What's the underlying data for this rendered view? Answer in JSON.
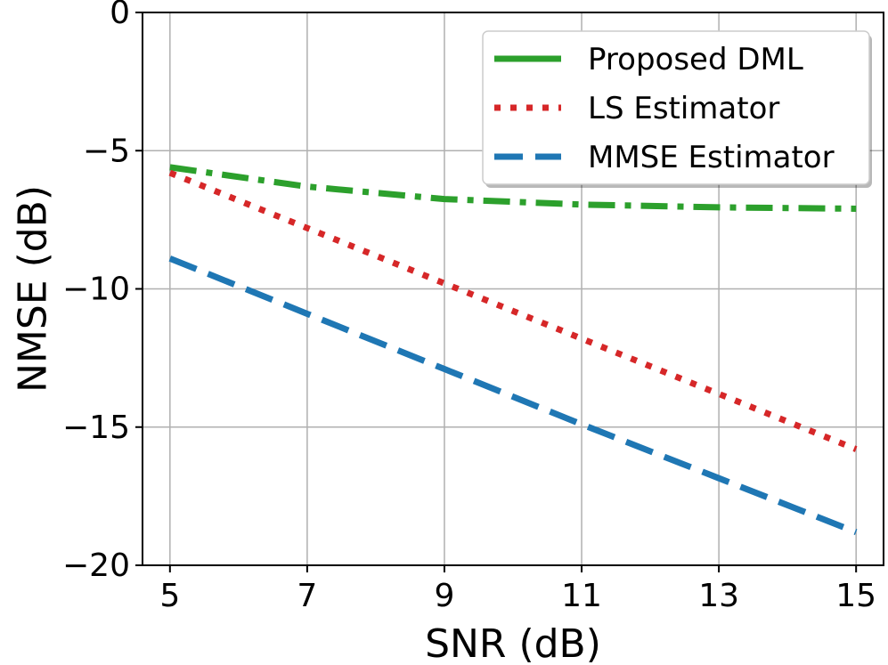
{
  "chart_data": {
    "type": "line",
    "title": "",
    "xlabel": "SNR (dB)",
    "ylabel": "NMSE (dB)",
    "xlim": [
      4.6,
      15.4
    ],
    "ylim": [
      -20,
      0
    ],
    "xticks": [
      5,
      7,
      9,
      11,
      13,
      15
    ],
    "yticks": [
      0,
      -5,
      -10,
      -15,
      -20
    ],
    "xtick_labels": [
      "5",
      "7",
      "9",
      "11",
      "13",
      "15"
    ],
    "ytick_labels": [
      "0",
      "−5",
      "−10",
      "−15",
      "−20"
    ],
    "grid": true,
    "legend_position": "top-right",
    "x": [
      5,
      7,
      9,
      11,
      13,
      15
    ],
    "series": [
      {
        "name": "Proposed DML",
        "values": [
          -5.6,
          -6.3,
          -6.75,
          -6.95,
          -7.05,
          -7.1
        ],
        "color": "#2ca02c",
        "style": "dashdot",
        "legend_style": "solid"
      },
      {
        "name": "LS Estimator",
        "values": [
          -5.8,
          -7.8,
          -9.8,
          -11.8,
          -13.8,
          -15.8
        ],
        "color": "#d62728",
        "style": "dotted"
      },
      {
        "name": "MMSE Estimator",
        "values": [
          -8.9,
          -10.9,
          -12.9,
          -14.9,
          -16.85,
          -18.8
        ],
        "color": "#1f77b4",
        "style": "dashed"
      }
    ]
  }
}
